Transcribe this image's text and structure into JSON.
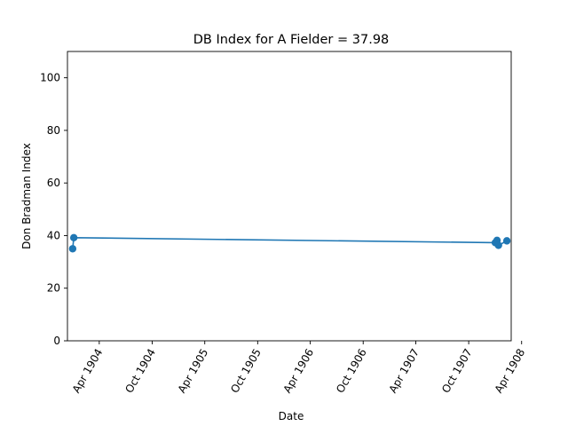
{
  "chart_data": {
    "type": "line",
    "title": "DB Index for A Fielder = 37.98",
    "xlabel": "Date",
    "ylabel": "Don Bradman Index",
    "x_range": [
      "1903-12-13",
      "1908-02-25"
    ],
    "ylim": [
      0,
      110
    ],
    "x_ticks": [
      {
        "date": "1904-04-01",
        "label": "Apr 1904"
      },
      {
        "date": "1904-10-01",
        "label": "Oct 1904"
      },
      {
        "date": "1905-04-01",
        "label": "Apr 1905"
      },
      {
        "date": "1905-10-01",
        "label": "Oct 1905"
      },
      {
        "date": "1906-04-01",
        "label": "Apr 1906"
      },
      {
        "date": "1906-10-01",
        "label": "Oct 1906"
      },
      {
        "date": "1907-04-01",
        "label": "Apr 1907"
      },
      {
        "date": "1907-10-01",
        "label": "Oct 1907"
      },
      {
        "date": "1908-04-01",
        "label": "Apr 1908"
      }
    ],
    "y_ticks": [
      0,
      20,
      40,
      60,
      80,
      100
    ],
    "grid": false,
    "colors": {
      "series": "#1f77b4"
    },
    "series": [
      {
        "points": [
          {
            "x": "1903-12-31",
            "y": 35.0
          },
          {
            "x": "1904-01-04",
            "y": 39.2
          },
          {
            "x": "1908-01-01",
            "y": 37.3
          },
          {
            "x": "1908-01-07",
            "y": 38.2
          },
          {
            "x": "1908-01-12",
            "y": 36.3
          },
          {
            "x": "1908-02-10",
            "y": 38.0
          }
        ]
      }
    ]
  }
}
